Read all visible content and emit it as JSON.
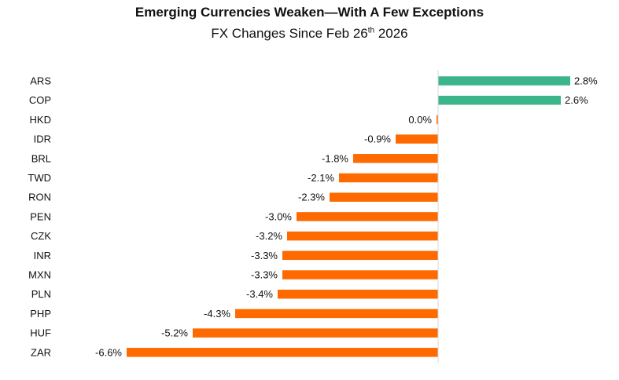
{
  "chart_data": {
    "type": "bar",
    "orientation": "horizontal",
    "title": "Emerging Currencies Weaken—With A Few Exceptions",
    "subtitle_prefix": "FX Changes Since Feb 26",
    "subtitle_sup": "th",
    "subtitle_suffix": " 2026",
    "categories": [
      "ARS",
      "COP",
      "HKD",
      "IDR",
      "BRL",
      "TWD",
      "RON",
      "PEN",
      "CZK",
      "INR",
      "MXN",
      "PLN",
      "PHP",
      "HUF",
      "ZAR"
    ],
    "values": [
      2.8,
      2.6,
      0.0,
      -0.9,
      -1.8,
      -2.1,
      -2.3,
      -3.0,
      -3.2,
      -3.3,
      -3.3,
      -3.4,
      -4.3,
      -5.2,
      -6.6
    ],
    "labels": [
      "2.8%",
      "2.6%",
      "0.0%",
      "-0.9%",
      "-1.8%",
      "-2.1%",
      "-2.3%",
      "-3.0%",
      "-3.2%",
      "-3.3%",
      "-3.3%",
      "-3.4%",
      "-4.3%",
      "-5.2%",
      "-6.6%"
    ],
    "unit": "%",
    "colors": {
      "positive": "#3db58a",
      "negative": "#ff6a00",
      "axis": "#d9d9d9"
    },
    "xlim": [
      -6.6,
      2.8
    ]
  }
}
